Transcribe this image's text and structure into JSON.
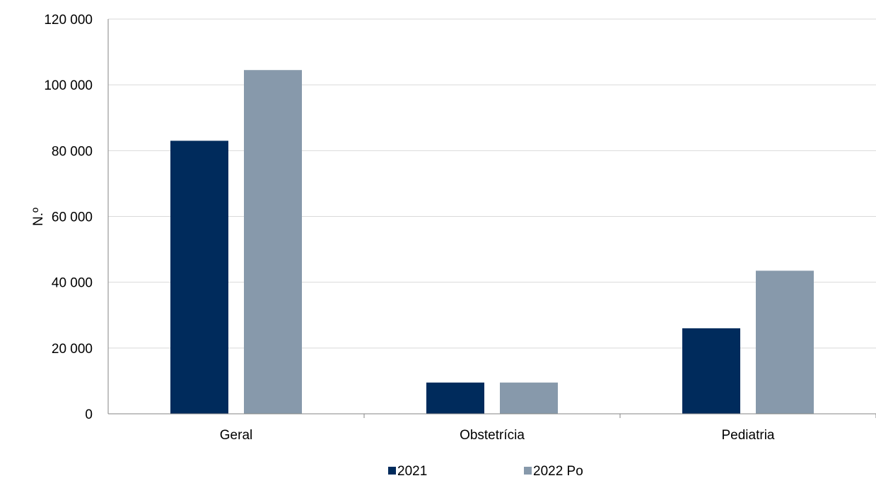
{
  "chart_data": {
    "type": "bar",
    "title": "",
    "xlabel": "",
    "ylabel": "N.º",
    "categories": [
      "Geral",
      "Obstetrícia",
      "Pediatria"
    ],
    "series": [
      {
        "name": "2021",
        "values": [
          83000,
          9500,
          26000
        ],
        "color": "#002b5c"
      },
      {
        "name": "2022 Po",
        "values": [
          104500,
          9500,
          43500
        ],
        "color": "#8799ab"
      }
    ],
    "ylim": [
      0,
      120000
    ],
    "yticks": [
      0,
      20000,
      40000,
      60000,
      80000,
      100000,
      120000
    ],
    "ytick_labels": [
      "0",
      "20 000",
      "40 000",
      "60 000",
      "80 000",
      "100 000",
      "120 000"
    ],
    "grid": true,
    "gridline_color": "#d9d9d9",
    "axis_color": "#868686",
    "legend_position": "bottom"
  }
}
